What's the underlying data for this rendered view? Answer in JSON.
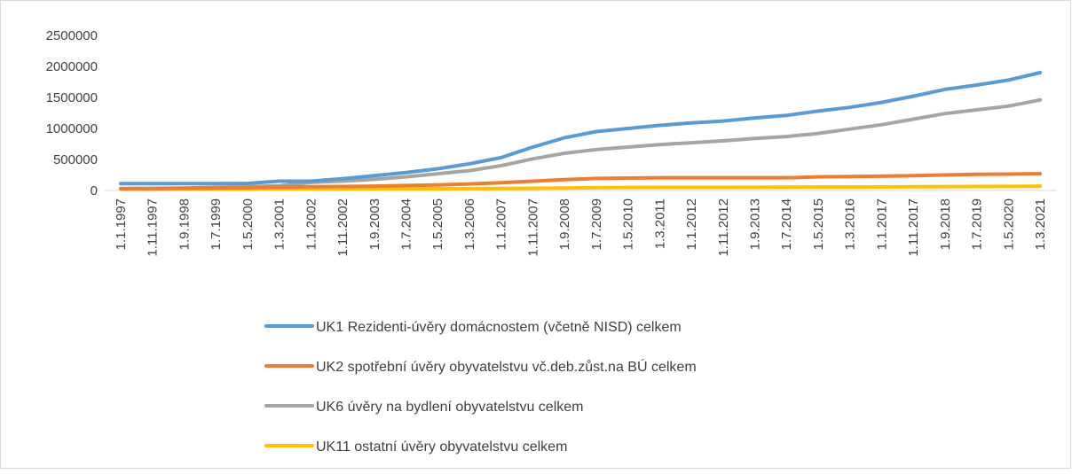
{
  "chart_data": {
    "type": "line",
    "categories": [
      "1.1.1997",
      "1.11.1997",
      "1.9.1998",
      "1.7.1999",
      "1.5.2000",
      "1.3.2001",
      "1.1.2002",
      "1.11.2002",
      "1.9.2003",
      "1.7.2004",
      "1.5.2005",
      "1.3.2006",
      "1.1.2007",
      "1.11.2007",
      "1.9.2008",
      "1.7.2009",
      "1.5.2010",
      "1.3.2011",
      "1.1.2012",
      "1.11.2012",
      "1.9.2013",
      "1.7.2014",
      "1.5.2015",
      "1.3.2016",
      "1.1.2017",
      "1.11.2017",
      "1.9.2018",
      "1.7.2019",
      "1.5.2020",
      "1.3.2021"
    ],
    "series": [
      {
        "name": "UK1 Rezidenti-úvěry domácnostem (včetně NISD) celkem",
        "color": "#5b9bd5",
        "values": [
          110000,
          110000,
          110000,
          110000,
          115000,
          150000,
          150000,
          190000,
          240000,
          290000,
          350000,
          430000,
          530000,
          700000,
          850000,
          950000,
          1000000,
          1050000,
          1090000,
          1120000,
          1170000,
          1210000,
          1280000,
          1340000,
          1420000,
          1520000,
          1630000,
          1700000,
          1780000,
          1900000
        ]
      },
      {
        "name": "UK2 spotřební úvěry obyvatelstvu vč.deb.zůst.na BÚ celkem",
        "color": "#ed7d31",
        "values": [
          30000,
          30000,
          35000,
          40000,
          45000,
          55000,
          60000,
          65000,
          70000,
          80000,
          90000,
          105000,
          125000,
          150000,
          175000,
          195000,
          200000,
          205000,
          205000,
          205000,
          205000,
          205000,
          220000,
          225000,
          230000,
          240000,
          250000,
          260000,
          265000,
          270000
        ]
      },
      {
        "name": "UK6 úvěry na bydlení obyvatelstvu celkem",
        "color": "#a5a5a5",
        "values": [
          30000,
          35000,
          40000,
          50000,
          60000,
          75000,
          130000,
          150000,
          180000,
          220000,
          270000,
          320000,
          400000,
          510000,
          600000,
          660000,
          700000,
          740000,
          770000,
          800000,
          840000,
          870000,
          920000,
          990000,
          1060000,
          1150000,
          1240000,
          1300000,
          1360000,
          1460000
        ]
      },
      {
        "name": "UK11 ostatní úvěry obyvatelstvu celkem",
        "color": "#ffc000",
        "values": [
          20000,
          20000,
          20000,
          20000,
          20000,
          25000,
          25000,
          25000,
          25000,
          25000,
          28000,
          30000,
          32000,
          35000,
          40000,
          45000,
          48000,
          50000,
          50000,
          50000,
          52000,
          53000,
          55000,
          56000,
          58000,
          60000,
          62000,
          64000,
          66000,
          70000
        ]
      }
    ],
    "ylim": [
      0,
      2500000
    ],
    "yticks": [
      0,
      500000,
      1000000,
      1500000,
      2000000,
      2500000
    ],
    "grid": false,
    "legend": "bottom"
  }
}
